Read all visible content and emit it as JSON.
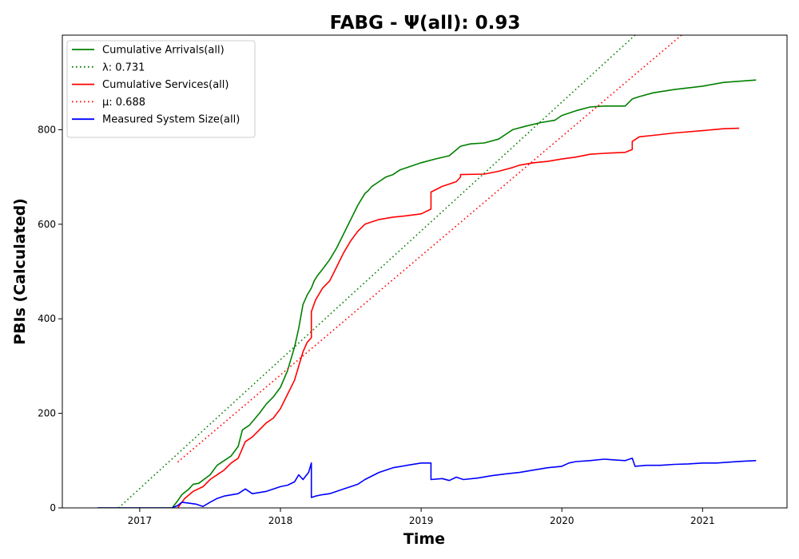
{
  "chart_data": {
    "type": "line",
    "title": "FABG -  Ψ(all): 0.93",
    "xlabel": "Time",
    "ylabel": "PBIs (Calculated)",
    "xlim": [
      2016.45,
      2021.6
    ],
    "ylim": [
      0,
      1000
    ],
    "x_ticks": [
      {
        "value": 2017,
        "label": "2017"
      },
      {
        "value": 2018,
        "label": "2018"
      },
      {
        "value": 2019,
        "label": "2019"
      },
      {
        "value": 2020,
        "label": "2020"
      },
      {
        "value": 2021,
        "label": "2021"
      }
    ],
    "y_ticks": [
      {
        "value": 0,
        "label": "0"
      },
      {
        "value": 200,
        "label": "200"
      },
      {
        "value": 400,
        "label": "400"
      },
      {
        "value": 600,
        "label": "600"
      },
      {
        "value": 800,
        "label": "800"
      }
    ],
    "grid": false,
    "legend_position": "top-left",
    "series": [
      {
        "name": "Cumulative Arrivals(all)",
        "color": "#008000",
        "dash": "solid",
        "x": [
          2016.7,
          2017.23,
          2017.27,
          2017.3,
          2017.35,
          2017.38,
          2017.42,
          2017.5,
          2017.55,
          2017.6,
          2017.65,
          2017.7,
          2017.73,
          2017.78,
          2017.85,
          2017.9,
          2017.95,
          2018.0,
          2018.05,
          2018.1,
          2018.13,
          2018.16,
          2018.19,
          2018.22,
          2018.24,
          2018.26,
          2018.3,
          2018.35,
          2018.4,
          2018.45,
          2018.5,
          2018.55,
          2018.6,
          2018.62,
          2018.65,
          2018.7,
          2018.75,
          2018.8,
          2018.85,
          2018.9,
          2019.0,
          2019.1,
          2019.2,
          2019.28,
          2019.35,
          2019.45,
          2019.55,
          2019.65,
          2019.75,
          2019.85,
          2019.95,
          2020.0,
          2020.1,
          2020.2,
          2020.3,
          2020.45,
          2020.5,
          2020.55,
          2020.65,
          2020.8,
          2021.0,
          2021.15,
          2021.38
        ],
        "y": [
          0,
          0,
          15,
          28,
          40,
          50,
          52,
          70,
          90,
          100,
          110,
          130,
          165,
          175,
          200,
          220,
          235,
          255,
          290,
          340,
          380,
          430,
          450,
          465,
          480,
          490,
          505,
          525,
          550,
          580,
          610,
          640,
          665,
          670,
          680,
          690,
          700,
          705,
          715,
          720,
          730,
          738,
          745,
          765,
          770,
          772,
          780,
          800,
          808,
          815,
          820,
          830,
          840,
          848,
          850,
          850,
          865,
          870,
          878,
          885,
          892,
          900,
          905
        ]
      },
      {
        "name": "λ: 0.731",
        "color": "#008000",
        "dash": "dotted",
        "x": [
          2016.85,
          2020.52
        ],
        "y": [
          0,
          1000
        ]
      },
      {
        "name": "Cumulative Services(all)",
        "color": "#ff0000",
        "dash": "solid",
        "x": [
          2017.27,
          2017.32,
          2017.38,
          2017.45,
          2017.5,
          2017.55,
          2017.6,
          2017.65,
          2017.7,
          2017.75,
          2017.8,
          2017.85,
          2017.9,
          2017.95,
          2018.0,
          2018.05,
          2018.1,
          2018.13,
          2018.16,
          2018.19,
          2018.22,
          2018.22,
          2018.25,
          2018.3,
          2018.35,
          2018.4,
          2018.45,
          2018.5,
          2018.55,
          2018.6,
          2018.65,
          2018.7,
          2018.8,
          2018.9,
          2019.0,
          2019.07,
          2019.07,
          2019.15,
          2019.25,
          2019.28,
          2019.28,
          2019.45,
          2019.55,
          2019.65,
          2019.7,
          2019.8,
          2019.9,
          2020.0,
          2020.1,
          2020.2,
          2020.3,
          2020.45,
          2020.5,
          2020.5,
          2020.55,
          2020.65,
          2020.8,
          2021.0,
          2021.15,
          2021.26
        ],
        "y": [
          0,
          20,
          35,
          45,
          60,
          70,
          80,
          95,
          105,
          140,
          150,
          165,
          180,
          190,
          210,
          240,
          270,
          300,
          330,
          350,
          360,
          415,
          440,
          465,
          480,
          510,
          540,
          565,
          585,
          600,
          605,
          610,
          615,
          618,
          622,
          632,
          668,
          680,
          690,
          700,
          705,
          706,
          712,
          720,
          725,
          730,
          733,
          738,
          742,
          748,
          750,
          752,
          758,
          775,
          785,
          788,
          793,
          798,
          802,
          803
        ]
      },
      {
        "name": "μ: 0.688",
        "color": "#ff0000",
        "dash": "dotted",
        "x": [
          2017.27,
          2020.85
        ],
        "y": [
          97,
          1000
        ]
      },
      {
        "name": "Measured System Size(all)",
        "color": "#0000ff",
        "dash": "solid",
        "x": [
          2016.7,
          2017.23,
          2017.27,
          2017.3,
          2017.35,
          2017.4,
          2017.45,
          2017.5,
          2017.55,
          2017.6,
          2017.7,
          2017.75,
          2017.8,
          2017.9,
          2018.0,
          2018.05,
          2018.1,
          2018.13,
          2018.16,
          2018.2,
          2018.22,
          2018.22,
          2018.25,
          2018.3,
          2018.35,
          2018.4,
          2018.45,
          2018.5,
          2018.55,
          2018.6,
          2018.7,
          2018.8,
          2018.9,
          2019.0,
          2019.07,
          2019.07,
          2019.15,
          2019.2,
          2019.25,
          2019.3,
          2019.4,
          2019.5,
          2019.6,
          2019.7,
          2019.8,
          2019.9,
          2020.0,
          2020.05,
          2020.1,
          2020.2,
          2020.3,
          2020.45,
          2020.5,
          2020.52,
          2020.6,
          2020.7,
          2020.8,
          2020.9,
          2021.0,
          2021.1,
          2021.2,
          2021.3,
          2021.38
        ],
        "y": [
          0,
          0,
          5,
          12,
          10,
          8,
          3,
          12,
          20,
          25,
          30,
          40,
          30,
          35,
          45,
          48,
          55,
          70,
          60,
          75,
          95,
          22,
          25,
          28,
          30,
          35,
          40,
          45,
          50,
          60,
          75,
          85,
          90,
          95,
          95,
          60,
          62,
          58,
          65,
          60,
          63,
          68,
          72,
          75,
          80,
          85,
          88,
          95,
          98,
          100,
          103,
          100,
          105,
          88,
          90,
          90,
          92,
          93,
          95,
          95,
          97,
          99,
          100
        ]
      }
    ]
  }
}
